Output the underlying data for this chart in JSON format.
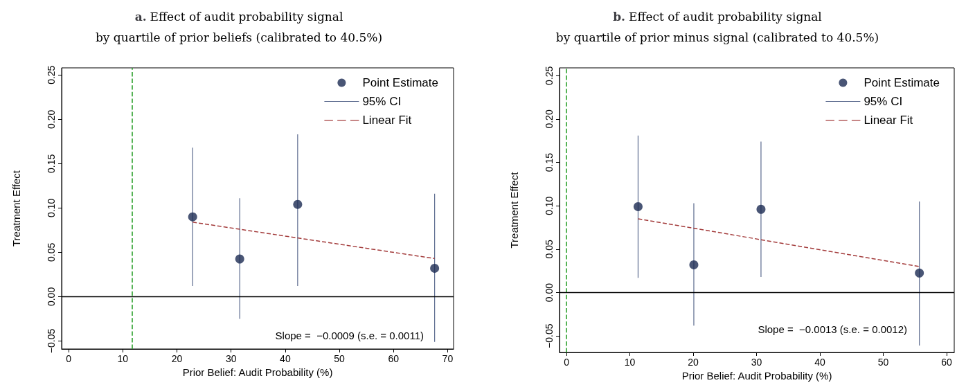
{
  "chart_data": [
    {
      "type": "scatter",
      "title": "a. Effect of audit probability signal\nby quartile of prior beliefs (calibrated to 40.5%)",
      "xlabel": "Prior Belief: Audit Probability (%)",
      "ylabel": "Treatment Effect",
      "series": [
        {
          "name": "Point Estimate",
          "color": "#1c2b52",
          "x": [
            22.9,
            31.6,
            42.3,
            67.6
          ],
          "values": [
            0.09,
            0.0425,
            0.104,
            0.032
          ]
        },
        {
          "name": "95% CI",
          "type": "bar",
          "color": "#5b6a8e",
          "x": [
            22.9,
            31.6,
            42.3,
            67.6
          ],
          "base": [
            0.012,
            -0.025,
            0.012,
            -0.051
          ],
          "values": [
            0.156,
            0.136,
            0.171,
            0.167
          ]
        },
        {
          "name": "Linear Fit",
          "type": "line",
          "color": "#a33b3b",
          "line_style": "dashed",
          "marker": "none",
          "x": [
            22.9,
            67.6
          ],
          "values": [
            0.084,
            0.043
          ]
        }
      ],
      "xlim": [
        -1.3,
        71.1
      ],
      "xticks": [
        0,
        10,
        20,
        30,
        40,
        50,
        60,
        70
      ],
      "ylim": [
        -0.059,
        0.258
      ],
      "yticks": [
        {
          "value": -0.05,
          "label": "−0.05"
        },
        {
          "value": 0,
          "label": "0.00"
        },
        {
          "value": 0.05,
          "label": "0.05"
        },
        {
          "value": 0.1,
          "label": "0.10"
        },
        {
          "value": 0.15,
          "label": "0.15"
        },
        {
          "value": 0.2,
          "label": "0.20"
        },
        {
          "value": 0.25,
          "label": "0.25"
        }
      ],
      "ref_lines": [
        {
          "axis": "x",
          "value": 11.7,
          "color": "#2ca02c",
          "line_style": "dashed"
        },
        {
          "axis": "y",
          "value": 0,
          "color": "#000000",
          "line_style": "solid"
        }
      ],
      "annotations": [
        "Slope =  −0.0009 (s.e. = 0.0011)"
      ],
      "legend": "top right",
      "grid": false,
      "marker": "circle"
    },
    {
      "type": "scatter",
      "title": "b. Effect of audit probability signal\nby quartile of prior minus signal (calibrated to 40.5%)",
      "xlabel": "Prior Belief: Audit Probability (%)",
      "ylabel": "Treatment Effect",
      "series": [
        {
          "name": "Point Estimate",
          "color": "#1c2b52",
          "x": [
            11.3,
            20.1,
            30.7,
            55.7
          ],
          "values": [
            0.099,
            0.032,
            0.096,
            0.0225
          ]
        },
        {
          "name": "95% CI",
          "type": "bar",
          "color": "#5b6a8e",
          "x": [
            11.3,
            20.1,
            30.7,
            55.7
          ],
          "base": [
            0.017,
            -0.038,
            0.018,
            -0.061
          ],
          "values": [
            0.164,
            0.141,
            0.156,
            0.166
          ]
        },
        {
          "name": "Linear Fit",
          "type": "line",
          "color": "#a33b3b",
          "line_style": "dashed",
          "marker": "none",
          "x": [
            11.3,
            55.7
          ],
          "values": [
            0.085,
            0.03
          ]
        }
      ],
      "xlim": [
        -1.1,
        61.2
      ],
      "xticks": [
        0,
        10,
        20,
        30,
        40,
        50,
        60
      ],
      "ylim": [
        -0.069,
        0.259
      ],
      "yticks": [
        {
          "value": -0.05,
          "label": "−0.05"
        },
        {
          "value": 0,
          "label": "0.00"
        },
        {
          "value": 0.05,
          "label": "0.05"
        },
        {
          "value": 0.1,
          "label": "0.10"
        },
        {
          "value": 0.15,
          "label": "0.15"
        },
        {
          "value": 0.2,
          "label": "0.20"
        },
        {
          "value": 0.25,
          "label": "0.25"
        }
      ],
      "ref_lines": [
        {
          "axis": "x",
          "value": 0,
          "color": "#2ca02c",
          "line_style": "dashed"
        },
        {
          "axis": "y",
          "value": 0,
          "color": "#000000",
          "line_style": "solid"
        }
      ],
      "annotations": [
        "Slope =  −0.0013 (s.e. = 0.0012)"
      ],
      "legend": "top right",
      "grid": false,
      "marker": "circle"
    }
  ]
}
